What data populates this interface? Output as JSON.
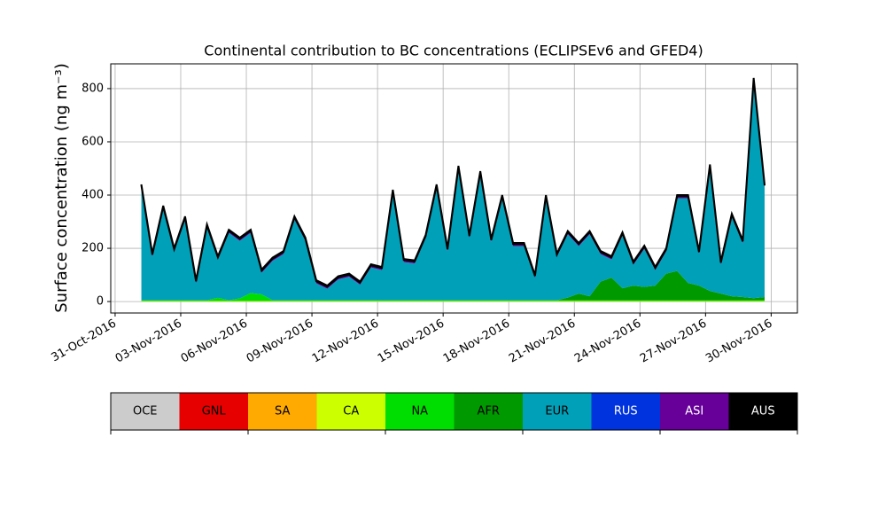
{
  "chart_data": {
    "type": "area",
    "stacked": true,
    "title": "Continental contribution to BC concentrations (ECLIPSEv6 and GFED4)",
    "y_label": "Surface concentration (ng m⁻³)",
    "x": [
      1.2,
      1.7,
      2.2,
      2.7,
      3.2,
      3.7,
      4.2,
      4.7,
      5.2,
      5.7,
      6.2,
      6.7,
      7.2,
      7.7,
      8.2,
      8.7,
      9.2,
      9.7,
      10.2,
      10.7,
      11.2,
      11.7,
      12.2,
      12.7,
      13.2,
      13.7,
      14.2,
      14.7,
      15.2,
      15.7,
      16.2,
      16.7,
      17.2,
      17.7,
      18.2,
      18.7,
      19.2,
      19.7,
      20.2,
      20.7,
      21.2,
      21.7,
      22.2,
      22.7,
      23.2,
      23.7,
      24.2,
      24.7,
      25.2,
      25.7,
      26.2,
      26.7,
      27.2,
      27.7,
      28.2,
      28.7,
      29.2,
      29.7
    ],
    "xlim": [
      -0.2,
      31.2
    ],
    "xticks": [
      {
        "value": 0,
        "label": "31-Oct-2016"
      },
      {
        "value": 3,
        "label": "03-Nov-2016"
      },
      {
        "value": 6,
        "label": "06-Nov-2016"
      },
      {
        "value": 9,
        "label": "09-Nov-2016"
      },
      {
        "value": 12,
        "label": "12-Nov-2016"
      },
      {
        "value": 15,
        "label": "15-Nov-2016"
      },
      {
        "value": 18,
        "label": "18-Nov-2016"
      },
      {
        "value": 21,
        "label": "21-Nov-2016"
      },
      {
        "value": 24,
        "label": "24-Nov-2016"
      },
      {
        "value": 27,
        "label": "27-Nov-2016"
      },
      {
        "value": 30,
        "label": "30-Nov-2016"
      }
    ],
    "ylim": [
      -43,
      893
    ],
    "yticks": [
      0,
      200,
      400,
      600,
      800
    ],
    "grid": true,
    "series": [
      {
        "name": "OCE",
        "color": "#cccccc",
        "values": [
          0,
          0,
          0,
          0,
          0,
          0,
          0,
          0,
          0,
          0,
          0,
          0,
          0,
          0,
          0,
          0,
          0,
          0,
          0,
          0,
          0,
          0,
          0,
          0,
          0,
          0,
          0,
          0,
          0,
          0,
          0,
          0,
          0,
          0,
          0,
          0,
          0,
          0,
          0,
          0,
          0,
          0,
          0,
          0,
          0,
          0,
          0,
          0,
          0,
          0,
          0,
          0,
          0,
          0,
          0,
          0,
          0,
          0
        ]
      },
      {
        "name": "GNL",
        "color": "#e60000",
        "values": [
          0,
          0,
          0,
          0,
          0,
          0,
          0,
          0,
          0,
          0,
          0,
          0,
          0,
          0,
          0,
          0,
          0,
          0,
          0,
          0,
          0,
          0,
          0,
          0,
          0,
          0,
          0,
          0,
          0,
          0,
          0,
          0,
          0,
          0,
          0,
          0,
          0,
          0,
          0,
          0,
          0,
          0,
          0,
          0,
          0,
          0,
          0,
          0,
          0,
          0,
          0,
          0,
          0,
          0,
          0,
          0,
          0,
          0
        ]
      },
      {
        "name": "SA",
        "color": "#ffaa00",
        "values": [
          0,
          0,
          0,
          0,
          0,
          0,
          0,
          0,
          0,
          0,
          0,
          0,
          0,
          0,
          0,
          0,
          0,
          0,
          0,
          0,
          0,
          0,
          0,
          0,
          0,
          0,
          0,
          0,
          0,
          0,
          0,
          0,
          0,
          0,
          0,
          0,
          0,
          0,
          0,
          0,
          0,
          0,
          0,
          0,
          0,
          0,
          0,
          0,
          0,
          0,
          0,
          0,
          0,
          0,
          0,
          0,
          0,
          0
        ]
      },
      {
        "name": "CA",
        "color": "#ccff00",
        "values": [
          2,
          2,
          2,
          2,
          2,
          2,
          2,
          2,
          2,
          2,
          2,
          2,
          2,
          2,
          2,
          2,
          2,
          2,
          2,
          2,
          2,
          2,
          2,
          2,
          2,
          2,
          2,
          2,
          2,
          2,
          2,
          2,
          2,
          2,
          2,
          2,
          2,
          2,
          2,
          2,
          2,
          2,
          2,
          2,
          2,
          2,
          2,
          2,
          2,
          2,
          2,
          2,
          2,
          2,
          2,
          2,
          2,
          2
        ]
      },
      {
        "name": "NA",
        "color": "#00dd00",
        "values": [
          3,
          3,
          3,
          3,
          3,
          3,
          3,
          12,
          3,
          10,
          30,
          25,
          3,
          3,
          3,
          3,
          3,
          3,
          3,
          3,
          3,
          3,
          3,
          3,
          3,
          3,
          3,
          3,
          3,
          3,
          3,
          3,
          3,
          3,
          3,
          3,
          3,
          3,
          3,
          3,
          3,
          3,
          3,
          3,
          3,
          3,
          3,
          3,
          3,
          3,
          3,
          3,
          3,
          3,
          3,
          3,
          3,
          3
        ]
      },
      {
        "name": "AFR",
        "color": "#009900",
        "values": [
          0,
          0,
          0,
          0,
          0,
          0,
          0,
          0,
          0,
          0,
          0,
          0,
          0,
          0,
          0,
          0,
          0,
          0,
          0,
          0,
          0,
          0,
          0,
          0,
          0,
          0,
          0,
          0,
          0,
          0,
          0,
          0,
          0,
          0,
          0,
          0,
          0,
          0,
          0,
          10,
          25,
          15,
          70,
          85,
          45,
          55,
          50,
          55,
          100,
          110,
          65,
          55,
          35,
          25,
          15,
          12,
          8,
          12
        ]
      },
      {
        "name": "EUR",
        "color": "#00a0b8",
        "values": [
          423,
          163,
          343,
          183,
          303,
          63,
          273,
          144,
          253,
          216,
          226,
          81,
          148,
          173,
          303,
          223,
          63,
          43,
          78,
          88,
          58,
          123,
          113,
          403,
          143,
          138,
          233,
          423,
          183,
          493,
          233,
          473,
          218,
          383,
          203,
          203,
          83,
          383,
          163,
          238,
          178,
          233,
          103,
          68,
          198,
          78,
          143,
          58,
          83,
          273,
          318,
          118,
          463,
          108,
          298,
          201,
          815,
          411
        ]
      },
      {
        "name": "RUS",
        "color": "#0033dd",
        "values": [
          0,
          0,
          0,
          0,
          0,
          0,
          0,
          0,
          0,
          0,
          0,
          0,
          0,
          0,
          0,
          0,
          0,
          0,
          0,
          0,
          0,
          0,
          0,
          0,
          0,
          0,
          0,
          0,
          0,
          0,
          0,
          0,
          0,
          0,
          0,
          0,
          0,
          0,
          0,
          0,
          0,
          0,
          0,
          0,
          0,
          0,
          0,
          0,
          0,
          0,
          0,
          0,
          0,
          0,
          0,
          0,
          0,
          0
        ]
      },
      {
        "name": "ASI",
        "color": "#660099",
        "values": [
          8,
          8,
          8,
          8,
          8,
          8,
          8,
          8,
          8,
          8,
          8,
          8,
          8,
          8,
          8,
          8,
          8,
          8,
          8,
          8,
          8,
          8,
          8,
          8,
          8,
          8,
          8,
          8,
          8,
          8,
          8,
          8,
          8,
          8,
          8,
          8,
          8,
          8,
          8,
          8,
          8,
          8,
          8,
          8,
          8,
          8,
          8,
          8,
          8,
          8,
          8,
          8,
          8,
          8,
          8,
          8,
          8,
          8
        ]
      },
      {
        "name": "AUS",
        "color": "#000000",
        "values": [
          4,
          4,
          4,
          4,
          4,
          4,
          4,
          4,
          4,
          4,
          4,
          4,
          4,
          4,
          4,
          4,
          4,
          4,
          4,
          4,
          4,
          4,
          4,
          4,
          4,
          4,
          4,
          4,
          4,
          4,
          4,
          4,
          4,
          4,
          4,
          4,
          4,
          4,
          4,
          4,
          4,
          4,
          4,
          4,
          4,
          4,
          4,
          4,
          4,
          4,
          4,
          4,
          4,
          4,
          4,
          4,
          4,
          4
        ]
      }
    ]
  }
}
